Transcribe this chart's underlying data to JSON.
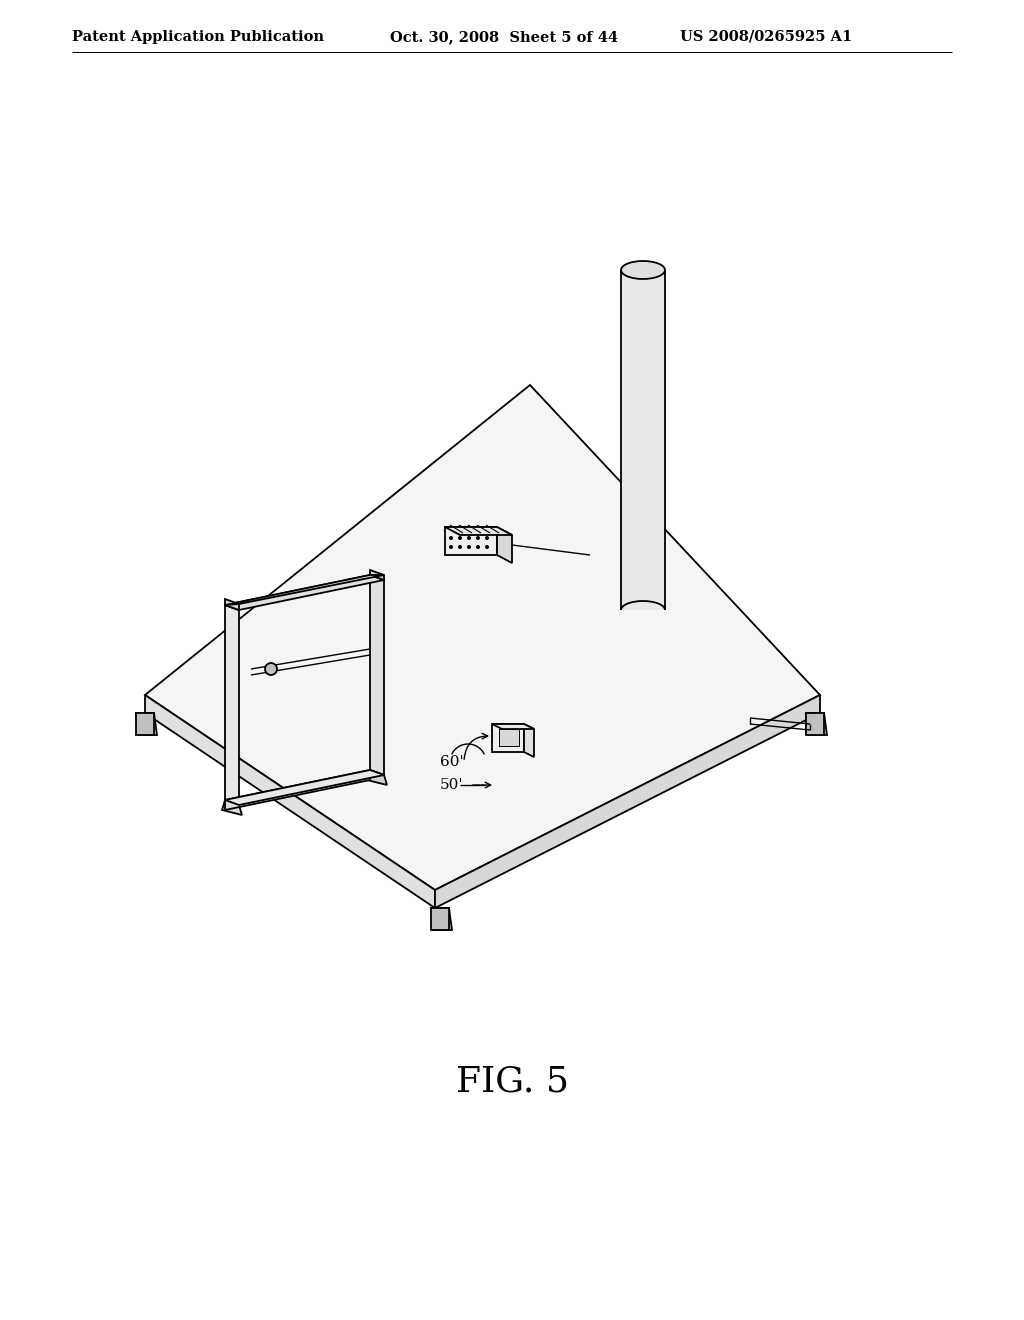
{
  "header_left": "Patent Application Publication",
  "header_mid": "Oct. 30, 2008  Sheet 5 of 44",
  "header_right": "US 2008/0265925 A1",
  "figure_label": "FIG. 5",
  "label_60": "60'",
  "label_50": "50'",
  "bg_color": "#ffffff",
  "line_color": "#000000",
  "header_fontsize": 10.5,
  "fig_label_fontsize": 26
}
